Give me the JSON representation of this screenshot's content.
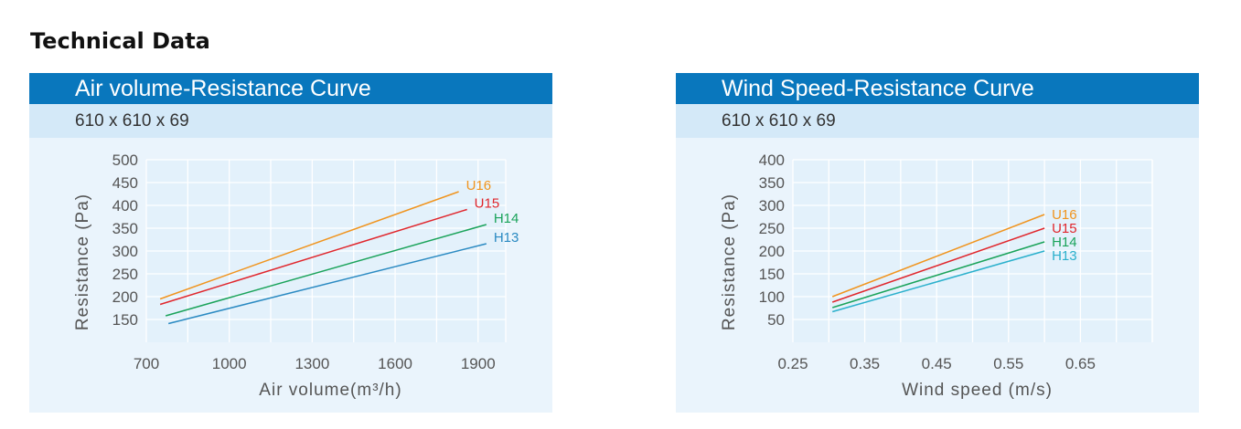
{
  "page": {
    "title": "Technical Data"
  },
  "chart_data": [
    {
      "type": "line",
      "title": "Air volume-Resistance Curve",
      "subtitle": "610 x 610 x 69",
      "xlabel": "Air volume(m³/h)",
      "ylabel": "Resistance (Pa)",
      "xlim": [
        700,
        2000
      ],
      "ylim": [
        100,
        500
      ],
      "xticks": [
        700,
        1000,
        1300,
        1600,
        1900
      ],
      "xtick_labels": [
        "700",
        "1000",
        "1300",
        "1600",
        "1900"
      ],
      "yticks": [
        150,
        200,
        250,
        300,
        350,
        400,
        450,
        500
      ],
      "ytick_labels": [
        "150",
        "200",
        "250",
        "300",
        "350",
        "400",
        "450",
        "500"
      ],
      "grid": true,
      "series": [
        {
          "name": "U16",
          "color": "#f0941e",
          "x": [
            750,
            1830
          ],
          "y": [
            195,
            430
          ]
        },
        {
          "name": "U15",
          "color": "#e0262c",
          "x": [
            750,
            1860
          ],
          "y": [
            183,
            391
          ]
        },
        {
          "name": "H14",
          "color": "#1aa35a",
          "x": [
            770,
            1930
          ],
          "y": [
            158,
            358
          ]
        },
        {
          "name": "H13",
          "color": "#2a8ac2",
          "x": [
            780,
            1930
          ],
          "y": [
            141,
            316
          ]
        }
      ]
    },
    {
      "type": "line",
      "title": "Wind Speed-Resistance Curve",
      "subtitle": "610 x 610 x 69",
      "xlabel": "Wind speed (m/s)",
      "ylabel": "Resistance (Pa)",
      "xlim": [
        0.25,
        0.75
      ],
      "ylim": [
        0,
        400
      ],
      "xticks": [
        0.25,
        0.35,
        0.45,
        0.55,
        0.65
      ],
      "xtick_labels": [
        "0.25",
        "0.35",
        "0.45",
        "0.55",
        "0.65"
      ],
      "yticks": [
        50,
        100,
        150,
        200,
        250,
        300,
        350,
        400
      ],
      "ytick_labels": [
        "50",
        "100",
        "150",
        "200",
        "250",
        "300",
        "350",
        "400"
      ],
      "grid": true,
      "series": [
        {
          "name": "U16",
          "color": "#f0941e",
          "x": [
            0.305,
            0.6
          ],
          "y": [
            100,
            280
          ]
        },
        {
          "name": "U15",
          "color": "#e0262c",
          "x": [
            0.305,
            0.6
          ],
          "y": [
            88,
            250
          ]
        },
        {
          "name": "H14",
          "color": "#1aa35a",
          "x": [
            0.305,
            0.6
          ],
          "y": [
            76,
            220
          ]
        },
        {
          "name": "H13",
          "color": "#2ab0cc",
          "x": [
            0.305,
            0.6
          ],
          "y": [
            67,
            200
          ]
        }
      ]
    }
  ]
}
